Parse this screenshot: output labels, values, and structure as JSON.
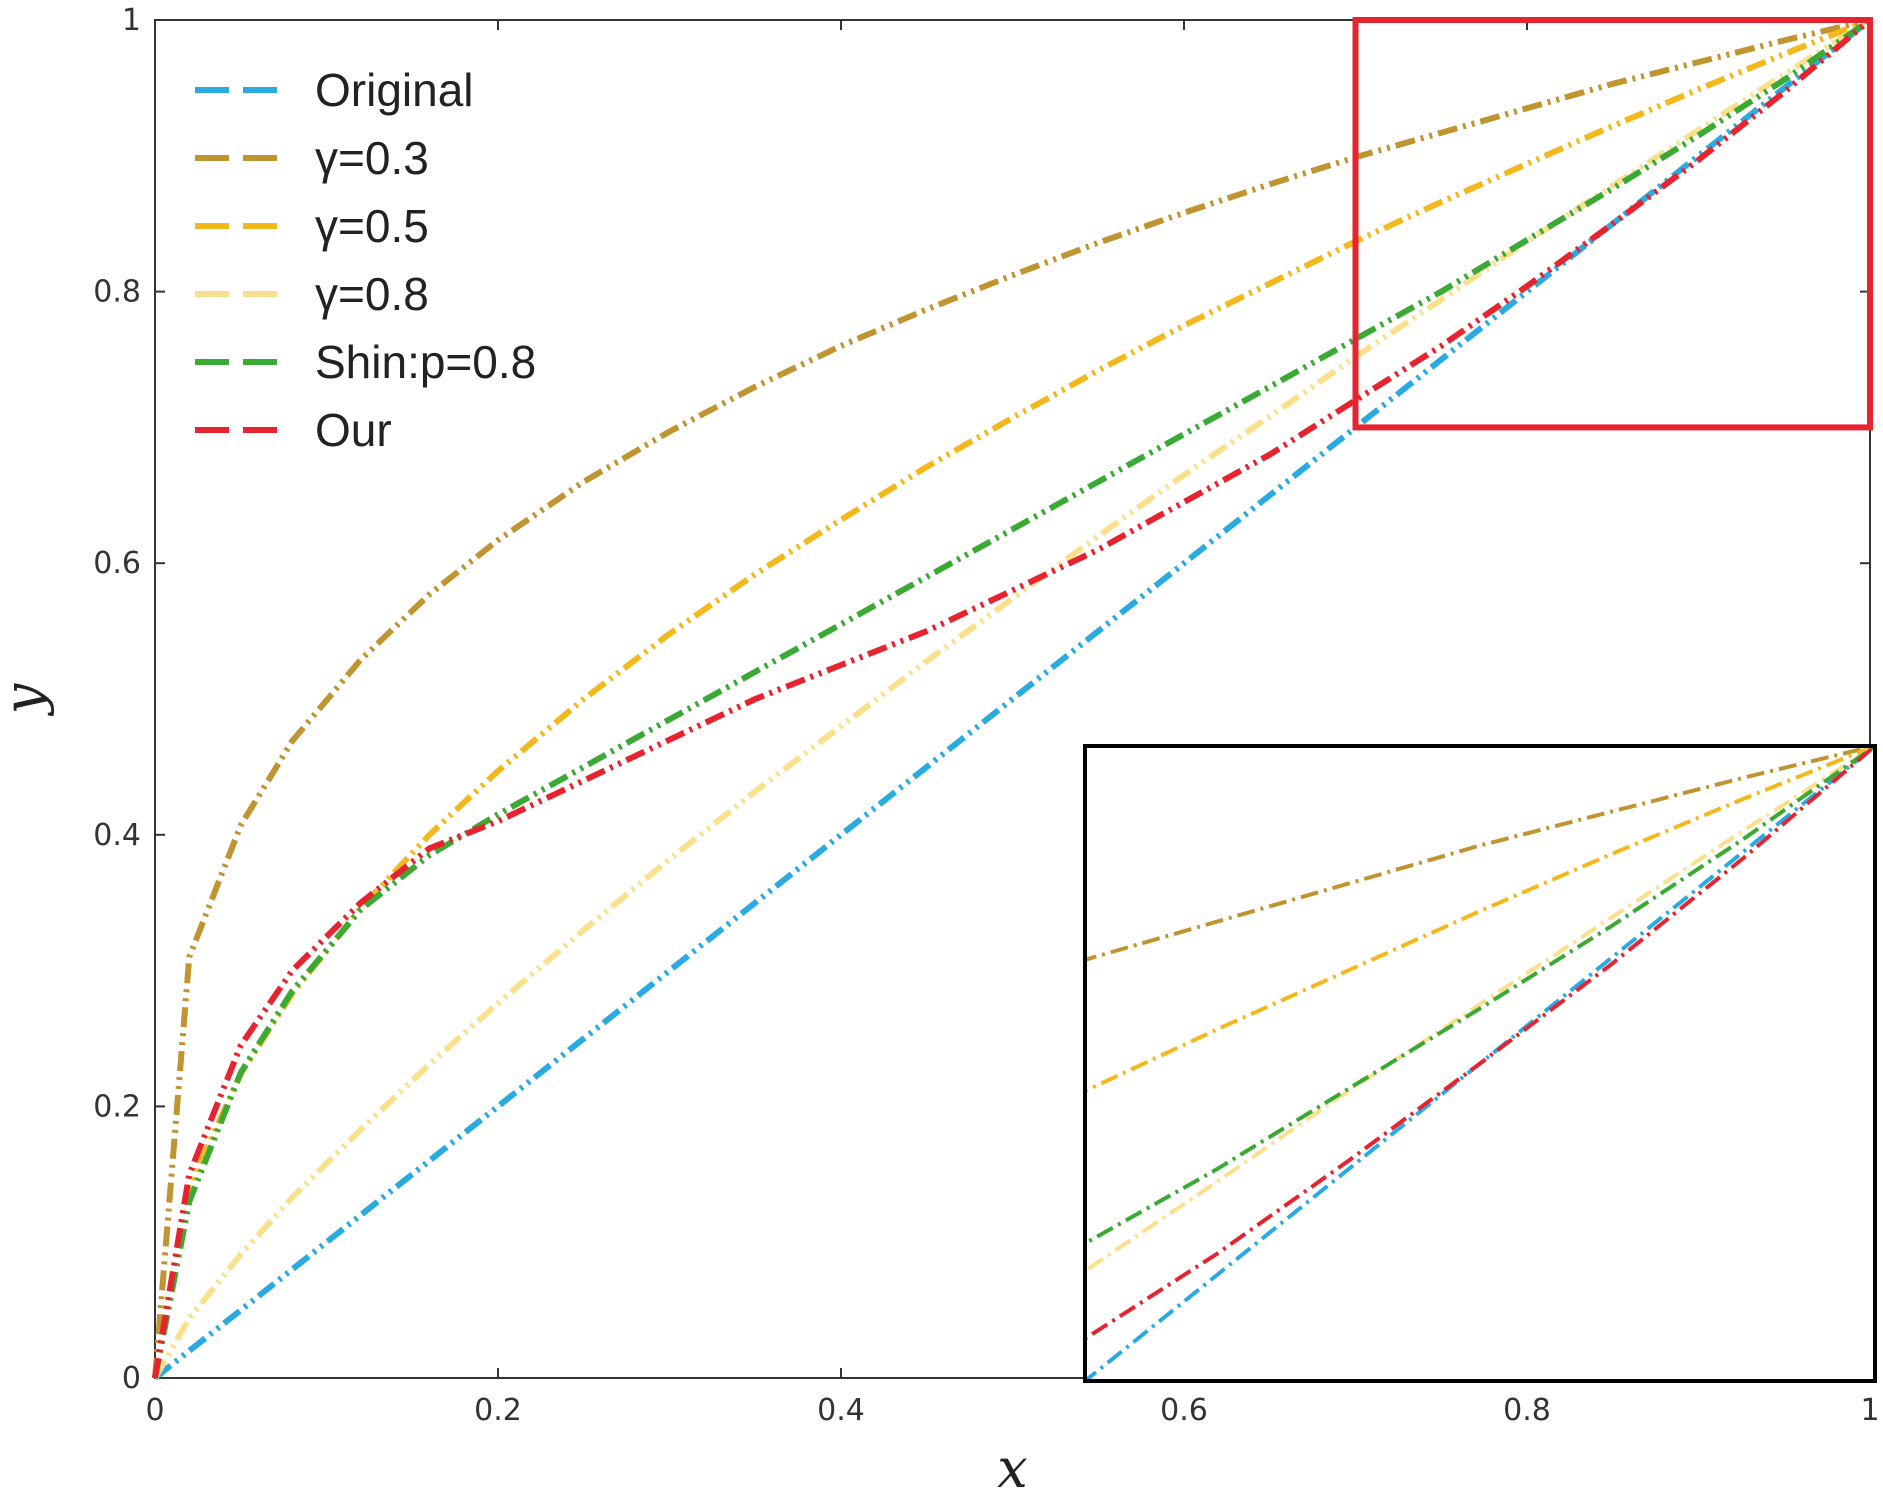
{
  "chart_data": {
    "type": "line",
    "title": "",
    "xlabel": "x",
    "ylabel": "y",
    "xlim": [
      0,
      1
    ],
    "ylim": [
      0,
      1
    ],
    "xticks": [
      "0",
      "0.2",
      "0.4",
      "0.6",
      "0.8",
      "1"
    ],
    "yticks": [
      "0",
      "0.2",
      "0.4",
      "0.6",
      "0.8",
      "1"
    ],
    "grid": false,
    "legend_position": "top-left",
    "x": [
      0,
      0.02,
      0.05,
      0.08,
      0.12,
      0.16,
      0.2,
      0.25,
      0.3,
      0.35,
      0.4,
      0.45,
      0.5,
      0.55,
      0.6,
      0.65,
      0.7,
      0.75,
      0.8,
      0.85,
      0.9,
      0.95,
      1.0
    ],
    "series": [
      {
        "name": "Original",
        "color": "#29abe2",
        "values": [
          0,
          0.02,
          0.05,
          0.08,
          0.12,
          0.16,
          0.2,
          0.25,
          0.3,
          0.35,
          0.4,
          0.45,
          0.5,
          0.55,
          0.6,
          0.65,
          0.7,
          0.75,
          0.8,
          0.85,
          0.9,
          0.95,
          1.0
        ]
      },
      {
        "name": "γ=0.3",
        "color": "#c09430",
        "values": [
          0,
          0.31,
          0.407,
          0.469,
          0.529,
          0.577,
          0.617,
          0.66,
          0.697,
          0.73,
          0.76,
          0.787,
          0.812,
          0.836,
          0.858,
          0.879,
          0.899,
          0.917,
          0.935,
          0.953,
          0.969,
          0.985,
          1.0
        ]
      },
      {
        "name": "γ=0.5",
        "color": "#f2b81c",
        "values": [
          0,
          0.141,
          0.224,
          0.283,
          0.346,
          0.4,
          0.447,
          0.5,
          0.548,
          0.592,
          0.632,
          0.671,
          0.707,
          0.742,
          0.775,
          0.806,
          0.837,
          0.866,
          0.894,
          0.922,
          0.949,
          0.975,
          1.0
        ]
      },
      {
        "name": "γ=0.8",
        "color": "#fbe08c",
        "values": [
          0,
          0.044,
          0.091,
          0.133,
          0.183,
          0.231,
          0.276,
          0.33,
          0.382,
          0.432,
          0.48,
          0.528,
          0.574,
          0.62,
          0.665,
          0.708,
          0.752,
          0.794,
          0.837,
          0.878,
          0.919,
          0.96,
          1.0
        ]
      },
      {
        "name": "Shin:p=0.8",
        "color": "#3aaa35",
        "values": [
          0,
          0.13,
          0.225,
          0.285,
          0.345,
          0.385,
          0.415,
          0.45,
          0.485,
          0.52,
          0.555,
          0.59,
          0.625,
          0.66,
          0.695,
          0.73,
          0.765,
          0.8,
          0.838,
          0.876,
          0.915,
          0.956,
          1.0
        ]
      },
      {
        "name": "Our",
        "color": "#e6232e",
        "values": [
          0,
          0.15,
          0.245,
          0.3,
          0.35,
          0.39,
          0.41,
          0.44,
          0.47,
          0.5,
          0.525,
          0.55,
          0.58,
          0.61,
          0.645,
          0.68,
          0.72,
          0.76,
          0.804,
          0.85,
          0.897,
          0.947,
          1.0
        ]
      }
    ],
    "highlight_box": {
      "xrange": [
        0.7,
        1.0
      ],
      "yrange": [
        0.7,
        1.0
      ],
      "color": "#e6232e"
    },
    "inset": {
      "xrange": [
        0.7,
        1.0
      ],
      "yrange": [
        0.7,
        1.0
      ],
      "border_color": "#000000",
      "position": "bottom-right"
    }
  }
}
